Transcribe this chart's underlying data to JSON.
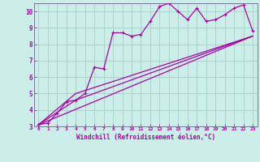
{
  "xlabel": "Windchill (Refroidissement éolien,°C)",
  "bg_color": "#cceee8",
  "grid_color": "#aad4cc",
  "line_color": "#aa00aa",
  "spine_color": "#777799",
  "xlim": [
    -0.5,
    23.5
  ],
  "ylim": [
    3,
    10.5
  ],
  "xticks": [
    0,
    1,
    2,
    3,
    4,
    5,
    6,
    7,
    8,
    9,
    10,
    11,
    12,
    13,
    14,
    15,
    16,
    17,
    18,
    19,
    20,
    21,
    22,
    23
  ],
  "yticks": [
    3,
    4,
    5,
    6,
    7,
    8,
    9,
    10
  ],
  "series1_x": [
    0,
    1,
    2,
    3,
    4,
    5,
    6,
    7,
    8,
    9,
    10,
    11,
    12,
    13,
    14,
    15,
    16,
    17,
    18,
    19,
    20,
    21,
    22,
    23
  ],
  "series1_y": [
    3.1,
    3.2,
    3.8,
    4.5,
    4.6,
    5.0,
    6.6,
    6.5,
    8.7,
    8.7,
    8.5,
    8.6,
    9.4,
    10.3,
    10.5,
    10.0,
    9.5,
    10.2,
    9.4,
    9.5,
    9.8,
    10.2,
    10.4,
    8.8
  ],
  "series2_x": [
    0,
    23
  ],
  "series2_y": [
    3.1,
    8.5
  ],
  "series3_x": [
    0,
    4,
    23
  ],
  "series3_y": [
    3.1,
    4.6,
    8.5
  ],
  "series4_x": [
    0,
    4,
    23
  ],
  "series4_y": [
    3.1,
    5.0,
    8.5
  ]
}
